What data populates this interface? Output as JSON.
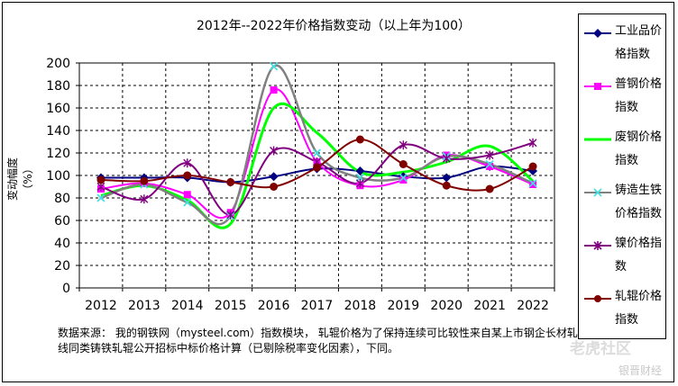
{
  "chart_data": {
    "type": "line",
    "title": "2012年--2022年价格指数变动（以上年为100）",
    "ylabel": "变动幅度（%）",
    "xlabel": "",
    "categories": [
      "2012",
      "2013",
      "2014",
      "2015",
      "2016",
      "2017",
      "2018",
      "2019",
      "2020",
      "2021",
      "2022"
    ],
    "ylim": [
      0,
      200
    ],
    "yticks": [
      0,
      20,
      40,
      60,
      80,
      100,
      120,
      140,
      160,
      180,
      200
    ],
    "grid": true,
    "legend_position": "right",
    "series": [
      {
        "name": "工业品价格指数",
        "color": "#000080",
        "marker": "diamond",
        "values": [
          98,
          98,
          98,
          94,
          99,
          106,
          104,
          99,
          98,
          108,
          104
        ]
      },
      {
        "name": "普钢价格指数",
        "color": "#ff00ff",
        "marker": "square",
        "values": [
          88,
          93,
          83,
          67,
          176,
          112,
          91,
          96,
          118,
          108,
          92
        ]
      },
      {
        "name": "废钢价格指数",
        "color": "#00ff00",
        "marker": "none",
        "values": [
          82,
          91,
          78,
          57,
          160,
          138,
          103,
          103,
          112,
          126,
          95
        ]
      },
      {
        "name": "铸造生铁价格指数",
        "color": "#808080",
        "marker": "x",
        "values": [
          80,
          92,
          76,
          64,
          197,
          120,
          98,
          98,
          117,
          110,
          93
        ]
      },
      {
        "name": "镍价格指数",
        "color": "#800080",
        "marker": "star",
        "values": [
          90,
          79,
          111,
          65,
          122,
          112,
          93,
          127,
          115,
          118,
          129
        ]
      },
      {
        "name": "轧辊价格指数",
        "color": "#800000",
        "marker": "circle",
        "values": [
          96,
          95,
          100,
          94,
          90,
          107,
          132,
          110,
          91,
          88,
          108
        ]
      }
    ]
  },
  "note": "数据来源： 我的钢铁网（mysteel.com）指数模块， 轧辊价格为了保持连续可比较性来自某上市钢企长材轧线同类铸铁轧辊公开招标中标价格计算（已剔除税率变化因素），下同。",
  "watermark": {
    "text1": "老虎社区",
    "text2": "银晋财经"
  }
}
